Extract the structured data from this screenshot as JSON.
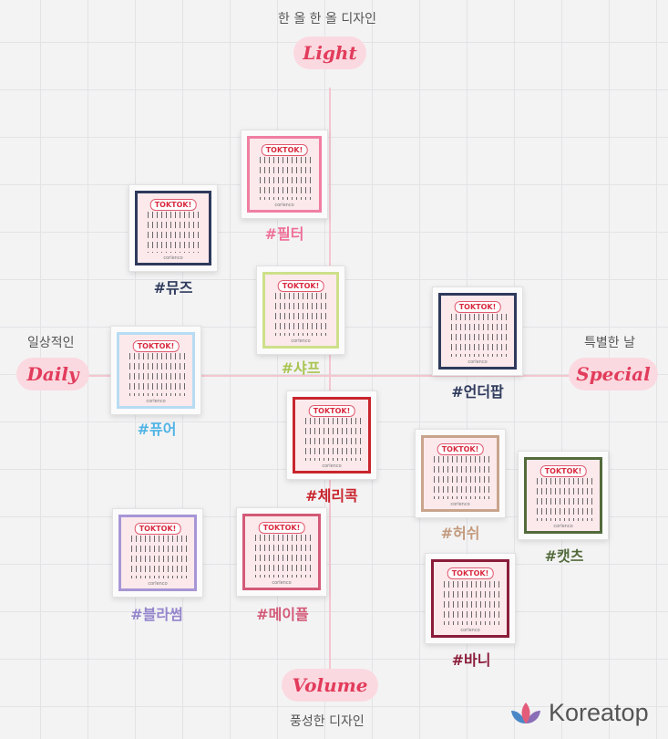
{
  "axes": {
    "top": {
      "caption": "한 올 한 올 디자인",
      "pill": "Light"
    },
    "bottom": {
      "caption": "풍성한 디자인",
      "pill": "Volume"
    },
    "left": {
      "caption": "일상적인",
      "pill": "Daily"
    },
    "right": {
      "caption": "특별한 날",
      "pill": "Special"
    }
  },
  "products": [
    {
      "label": "#필터",
      "frame_color": "#f07fa2",
      "label_color": "#ee6f96"
    },
    {
      "label": "#뮤즈",
      "frame_color": "#2f3a5c",
      "label_color": "#2f3a5c"
    },
    {
      "label": "#샤프",
      "frame_color": "#cde08a",
      "label_color": "#a9c451"
    },
    {
      "label": "#언더팝",
      "frame_color": "#2f3a5c",
      "label_color": "#2f3a5c"
    },
    {
      "label": "#퓨어",
      "frame_color": "#b7dcf3",
      "label_color": "#4fb3e4"
    },
    {
      "label": "#체리콕",
      "frame_color": "#c9252d",
      "label_color": "#c9252d"
    },
    {
      "label": "#허쉬",
      "frame_color": "#c9a48c",
      "label_color": "#c39a7e"
    },
    {
      "label": "#캣츠",
      "frame_color": "#536b3c",
      "label_color": "#536b3c"
    },
    {
      "label": "#블라썸",
      "frame_color": "#a796d6",
      "label_color": "#9585cc"
    },
    {
      "label": "#메이플",
      "frame_color": "#d35a78",
      "label_color": "#d35a78"
    },
    {
      "label": "#바니",
      "frame_color": "#8b1d3a",
      "label_color": "#8b1d3a"
    }
  ],
  "card_logo": "TOKTOK!",
  "card_brand": "corlenco",
  "brandmark": {
    "name": "Koreatop",
    "colors": [
      "#e35d7a",
      "#4a87c7",
      "#8a6db5"
    ]
  }
}
